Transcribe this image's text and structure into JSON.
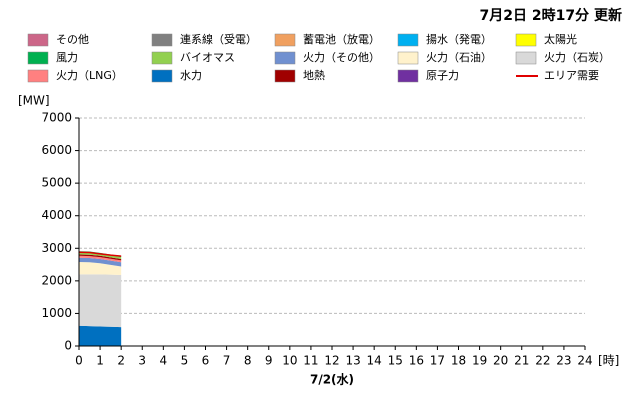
{
  "chart_data": {
    "type": "area",
    "stacked": true,
    "title": "7月2日 2時17分 更新",
    "y_label": "[MW]",
    "x_unit": "[時]",
    "x_label": "7/2(水)",
    "x": [
      0,
      0.5,
      1,
      1.5,
      2
    ],
    "xlim": [
      0,
      24
    ],
    "xticks": [
      0,
      1,
      2,
      3,
      4,
      5,
      6,
      7,
      8,
      9,
      10,
      11,
      12,
      13,
      14,
      15,
      16,
      17,
      18,
      19,
      20,
      21,
      22,
      23,
      24
    ],
    "ylim": [
      0,
      7000
    ],
    "yticks": [
      0,
      1000,
      2000,
      3000,
      4000,
      5000,
      6000,
      7000
    ],
    "grid": true,
    "series": [
      {
        "name": "その他",
        "color": "#cc6688",
        "values": [
          0,
          0,
          0,
          0,
          0
        ]
      },
      {
        "name": "連系線（受電）",
        "color": "#808080",
        "values": [
          0,
          0,
          0,
          0,
          0
        ]
      },
      {
        "name": "蓄電池（放電）",
        "color": "#f0a060",
        "values": [
          0,
          0,
          0,
          0,
          0
        ]
      },
      {
        "name": "揚水（発電）",
        "color": "#00b0f0",
        "values": [
          0,
          0,
          0,
          0,
          0
        ]
      },
      {
        "name": "太陽光",
        "color": "#ffff00",
        "values": [
          0,
          0,
          0,
          0,
          0
        ]
      },
      {
        "name": "風力",
        "color": "#00b050",
        "values": [
          40,
          40,
          30,
          30,
          30
        ]
      },
      {
        "name": "バイオマス",
        "color": "#92d050",
        "values": [
          60,
          60,
          60,
          60,
          60
        ]
      },
      {
        "name": "火力（その他）",
        "color": "#7090d0",
        "values": [
          130,
          130,
          130,
          130,
          130
        ]
      },
      {
        "name": "火力（石油）",
        "color": "#fff2cc",
        "values": [
          380,
          370,
          340,
          300,
          260
        ]
      },
      {
        "name": "火力（石炭）",
        "color": "#d9d9d9",
        "values": [
          1580,
          1590,
          1600,
          1600,
          1600
        ]
      },
      {
        "name": "火力（LNG）",
        "color": "#ff8080",
        "values": [
          60,
          60,
          60,
          60,
          60
        ]
      },
      {
        "name": "水力",
        "color": "#0070c0",
        "values": [
          620,
          610,
          600,
          590,
          580
        ]
      },
      {
        "name": "地熱",
        "color": "#a00000",
        "values": [
          40,
          40,
          40,
          40,
          40
        ]
      },
      {
        "name": "原子力",
        "color": "#7030a0",
        "values": [
          0,
          0,
          0,
          0,
          0
        ]
      },
      {
        "name": "エリア需要",
        "color": "#e00000",
        "line": true,
        "values": [
          2880,
          2870,
          2830,
          2790,
          2760
        ]
      }
    ]
  }
}
